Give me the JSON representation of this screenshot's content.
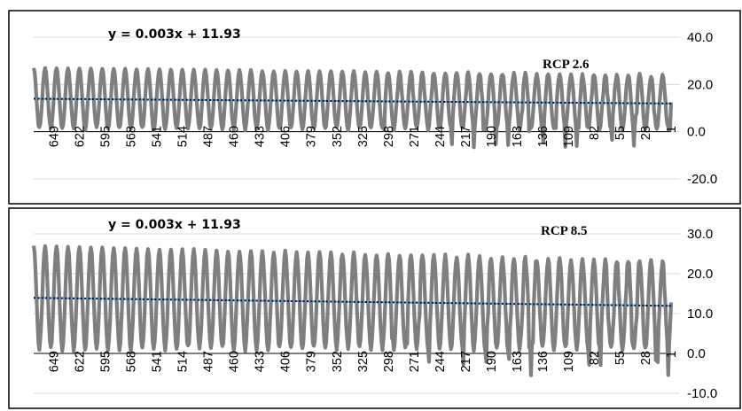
{
  "chart_data": [
    {
      "type": "line",
      "title": "",
      "annotations": {
        "equation": "y = 0.003x + 11.93",
        "scenario_label": "RCP 2.6"
      },
      "x_tick_labels": [
        "649",
        "622",
        "595",
        "568",
        "541",
        "514",
        "487",
        "460",
        "433",
        "406",
        "379",
        "352",
        "325",
        "298",
        "271",
        "244",
        "217",
        "190",
        "163",
        "136",
        "109",
        "82",
        "55",
        "28",
        "1"
      ],
      "x_range": [
        670,
        1
      ],
      "x_reversed": true,
      "y_tick_labels": [
        "40.0",
        "20.0",
        "0.0",
        "-20.0"
      ],
      "ylim": [
        -20,
        40
      ],
      "grid": true,
      "series": [
        {
          "kind": "seasonal_oscillation",
          "period": 12,
          "peak_range": [
            23,
            27
          ],
          "trough_range": [
            -8,
            2
          ]
        },
        {
          "kind": "linear_trend",
          "slope": 0.003,
          "intercept": 11.93
        }
      ]
    },
    {
      "type": "line",
      "title": "",
      "annotations": {
        "equation": "y = 0.003x + 11.93",
        "scenario_label": "RCP 8.5"
      },
      "x_tick_labels": [
        "649",
        "622",
        "595",
        "568",
        "541",
        "514",
        "487",
        "460",
        "433",
        "406",
        "379",
        "352",
        "325",
        "298",
        "271",
        "244",
        "217",
        "190",
        "163",
        "136",
        "109",
        "82",
        "55",
        "28",
        "1"
      ],
      "x_range": [
        670,
        1
      ],
      "x_reversed": true,
      "y_tick_labels": [
        "30.0",
        "20.0",
        "10.0",
        "0.0",
        "-10.0"
      ],
      "ylim": [
        -10,
        30
      ],
      "grid": true,
      "series": [
        {
          "kind": "seasonal_oscillation",
          "period": 12,
          "peak_range": [
            22,
            27
          ],
          "trough_range": [
            -6,
            2
          ]
        },
        {
          "kind": "linear_trend",
          "slope": 0.003,
          "intercept": 11.93
        }
      ]
    }
  ]
}
